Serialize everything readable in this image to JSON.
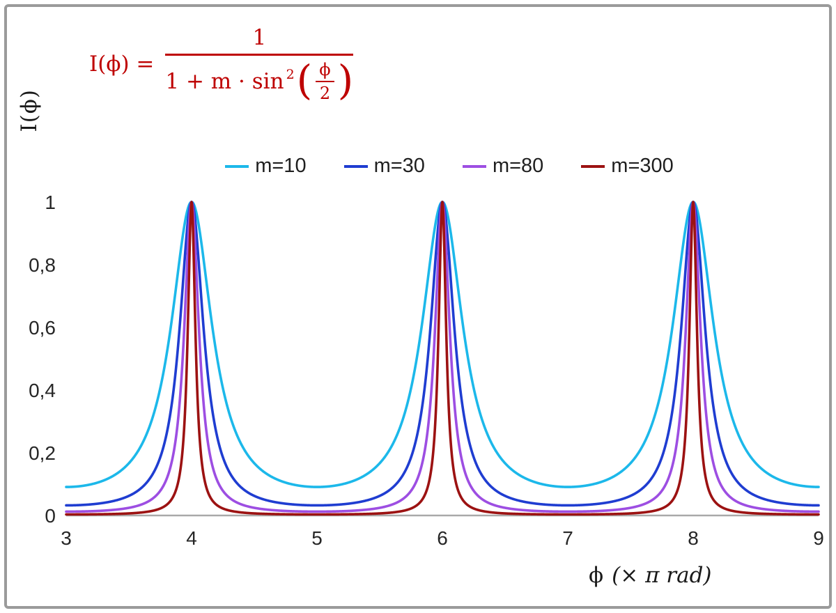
{
  "figure": {
    "formula": {
      "lhs": "I(ϕ) =",
      "numerator": "1",
      "den_prefix": "1 + m · sin",
      "den_exponent": "2",
      "open_paren": "(",
      "inner_numerator": "ϕ",
      "inner_denominator": "2",
      "close_paren": ")",
      "color": "#be0000"
    },
    "y_axis_title": "I(ϕ)",
    "x_axis_title_phi": "ϕ",
    "x_axis_title_unit": "(× π rad)"
  },
  "chart_data": {
    "type": "line",
    "title": "",
    "function": "I(phi) = 1 / (1 + m * sin^2(phi/2))",
    "xlabel": "ϕ (× π rad)",
    "ylabel": "I(ϕ)",
    "xlim": [
      3,
      9
    ],
    "ylim": [
      0,
      1
    ],
    "x_ticks": [
      {
        "value": 3,
        "label": "3"
      },
      {
        "value": 4,
        "label": "4"
      },
      {
        "value": 5,
        "label": "5"
      },
      {
        "value": 6,
        "label": "6"
      },
      {
        "value": 7,
        "label": "7"
      },
      {
        "value": 8,
        "label": "8"
      },
      {
        "value": 9,
        "label": "9"
      }
    ],
    "y_ticks": [
      {
        "value": 0,
        "label": "0"
      },
      {
        "value": 0.2,
        "label": "0,2"
      },
      {
        "value": 0.4,
        "label": "0,4"
      },
      {
        "value": 0.6,
        "label": "0,6"
      },
      {
        "value": 0.8,
        "label": "0,8"
      },
      {
        "value": 1,
        "label": "1"
      }
    ],
    "peaks_at_x": [
      4,
      6,
      8
    ],
    "peak_value": 1,
    "series": [
      {
        "name": "m=10",
        "m": 10,
        "color": "#1cb8ea"
      },
      {
        "name": "m=30",
        "m": 30,
        "color": "#1f3dd1"
      },
      {
        "name": "m=80",
        "m": 80,
        "color": "#9d4ee2"
      },
      {
        "name": "m=300",
        "m": 300,
        "color": "#9c1212"
      }
    ],
    "legend_position": "top-center",
    "grid": false,
    "axis_color": "#a9a9a9",
    "tick_label_color": "#262626"
  }
}
